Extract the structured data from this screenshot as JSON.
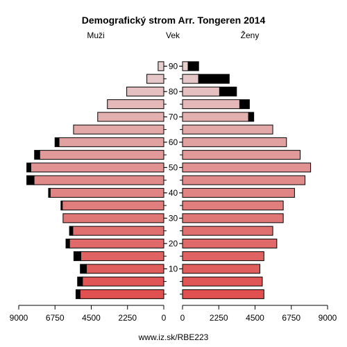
{
  "chart_data": {
    "type": "bar",
    "title": "Demografický strom Arr. Tongeren 2014",
    "left_label": "Muži",
    "center_label": "Vek",
    "right_label": "Ženy",
    "footer": "www.iz.sk/RBE223",
    "x_ticks_left": [
      "9000",
      "6750",
      "4500",
      "2250",
      "0"
    ],
    "x_ticks_right": [
      "0",
      "2250",
      "4500",
      "6750",
      "9000"
    ],
    "x_tick_values": [
      0,
      2250,
      4500,
      6750,
      9000
    ],
    "xlim": [
      0,
      9000
    ],
    "age_tick_labels": [
      "10",
      "20",
      "30",
      "40",
      "50",
      "60",
      "70",
      "80",
      "90"
    ],
    "age_groups": [
      "0-4",
      "5-9",
      "10-14",
      "15-19",
      "20-24",
      "25-29",
      "30-34",
      "35-39",
      "40-44",
      "45-49",
      "50-54",
      "55-59",
      "60-64",
      "65-69",
      "70-74",
      "75-79",
      "80-84",
      "85-89",
      "90+"
    ],
    "series": [
      {
        "name": "Muži",
        "color": "#e05050",
        "values": [
          5200,
          5050,
          4800,
          5150,
          5850,
          5650,
          6250,
          6300,
          7050,
          8050,
          8250,
          7700,
          6500,
          5600,
          4100,
          3500,
          2300,
          1050,
          350
        ],
        "excess": [
          250,
          300,
          380,
          430,
          220,
          200,
          0,
          80,
          100,
          450,
          250,
          320,
          250,
          0,
          0,
          0,
          0,
          0,
          0
        ]
      },
      {
        "name": "Ženy",
        "color": "#e05050",
        "values": [
          5050,
          4950,
          4800,
          5050,
          5850,
          5600,
          6250,
          6250,
          6950,
          7600,
          7950,
          7300,
          6450,
          5600,
          4100,
          3550,
          2300,
          1000,
          350
        ],
        "excess": [
          0,
          0,
          0,
          0,
          0,
          0,
          0,
          0,
          0,
          0,
          0,
          0,
          0,
          0,
          320,
          600,
          1050,
          1900,
          650
        ]
      }
    ],
    "colors": {
      "young": "#e05050",
      "mid": "#e08a8a",
      "old": "#e6cfcf",
      "surplus": "#000000",
      "outline": "#000000"
    }
  }
}
